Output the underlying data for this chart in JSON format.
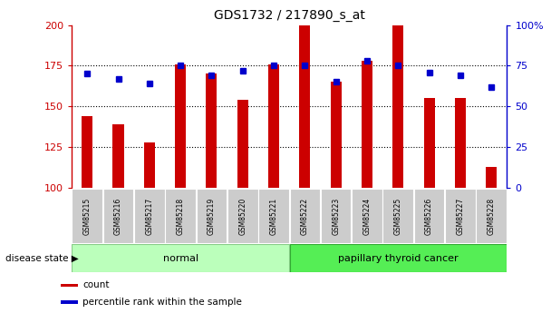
{
  "title": "GDS1732 / 217890_s_at",
  "categories": [
    "GSM85215",
    "GSM85216",
    "GSM85217",
    "GSM85218",
    "GSM85219",
    "GSM85220",
    "GSM85221",
    "GSM85222",
    "GSM85223",
    "GSM85224",
    "GSM85225",
    "GSM85226",
    "GSM85227",
    "GSM85228"
  ],
  "bar_values": [
    144,
    139,
    128,
    176,
    170,
    154,
    176,
    200,
    165,
    178,
    200,
    155,
    155,
    113
  ],
  "dot_pct": [
    70,
    67,
    64,
    75,
    69,
    72,
    75,
    75,
    65,
    78,
    75,
    71,
    69,
    62
  ],
  "bar_color": "#cc0000",
  "dot_color": "#0000cc",
  "ylim_left": [
    100,
    200
  ],
  "ylim_right": [
    0,
    100
  ],
  "yticks_left": [
    100,
    125,
    150,
    175,
    200
  ],
  "yticks_right": [
    0,
    25,
    50,
    75,
    100
  ],
  "grid_values": [
    125,
    150,
    175
  ],
  "normal_indices": [
    0,
    1,
    2,
    3,
    4,
    5,
    6
  ],
  "cancer_indices": [
    7,
    8,
    9,
    10,
    11,
    12,
    13
  ],
  "normal_label": "normal",
  "cancer_label": "papillary thyroid cancer",
  "disease_state_label": "disease state",
  "legend_bar_label": "count",
  "legend_dot_label": "percentile rank within the sample",
  "normal_color": "#bbffbb",
  "cancer_color": "#55ee55",
  "ticklabel_bg": "#cccccc",
  "bar_width": 0.35,
  "fig_bg": "#ffffff"
}
